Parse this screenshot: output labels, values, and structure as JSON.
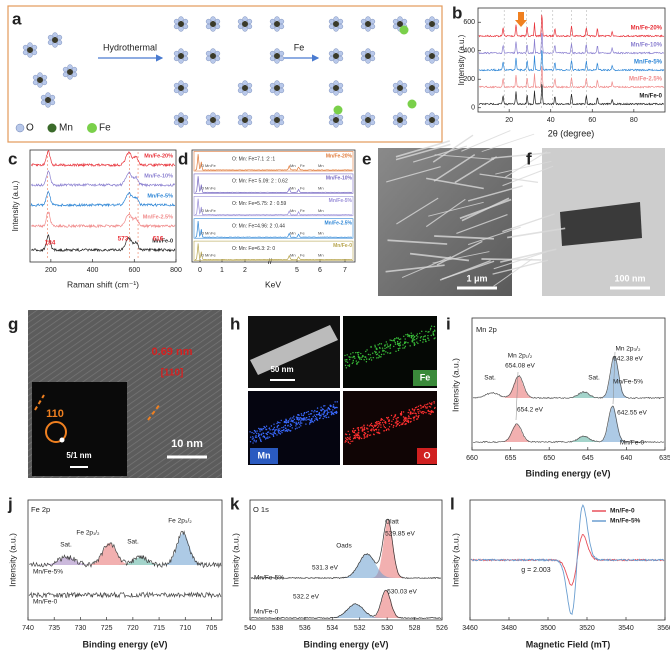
{
  "a": {
    "letter": "a",
    "steps": [
      "Hydrothermal",
      "Fe"
    ],
    "legend": [
      "O",
      "Mn",
      "Fe"
    ]
  },
  "b": {
    "letter": "b",
    "x_label": "2θ (degree)",
    "y_label": "Intensity (a.u.)",
    "xlim": [
      5,
      95
    ],
    "xticks": [
      20,
      40,
      60,
      80
    ],
    "ylim": [
      -30,
      700
    ],
    "yticks": [
      0,
      200,
      400,
      600
    ],
    "series": [
      {
        "name": "Mn/Fe-20%",
        "color": "#e8323a"
      },
      {
        "name": "Mn/Fe-10%",
        "color": "#8a7fd0"
      },
      {
        "name": "Mn/Fe-5%",
        "color": "#2e86d6"
      },
      {
        "name": "Mn/Fe-2.5%",
        "color": "#f08a8a"
      },
      {
        "name": "Mn/Fe-0",
        "color": "#222222"
      }
    ]
  },
  "c": {
    "letter": "c",
    "x_label": "Raman shift (cm⁻¹)",
    "y_label": "Intensity (a.u.)",
    "xlim": [
      100,
      800
    ],
    "xticks": [
      200,
      400,
      600,
      800
    ],
    "peaks": [
      "184",
      "573",
      "616"
    ],
    "series": [
      {
        "name": "Mn/Fe-20%",
        "color": "#e8323a"
      },
      {
        "name": "Mn/Fe-10%",
        "color": "#8a7fd0"
      },
      {
        "name": "Mn/Fe-5%",
        "color": "#2e86d6"
      },
      {
        "name": "Mn/Fe-2.5%",
        "color": "#f08a8a"
      },
      {
        "name": "Mn/Fe-0",
        "color": "#222222"
      }
    ]
  },
  "d": {
    "letter": "d",
    "x_label": "KeV",
    "xticks": [
      0,
      1,
      2,
      5,
      6,
      7
    ],
    "rows": [
      {
        "name": "Mn/Fe-20%",
        "color": "#e07a3a",
        "ratio": "O: Mn: Fe=7.1 :2 :1",
        "elements": [
          "O",
          "Mn",
          "Fe",
          "Mn",
          "Fe",
          "Mn"
        ]
      },
      {
        "name": "Mn/Fe-10%",
        "color": "#7a6cc4",
        "ratio": "O: Mn: Fe= 5.09: 2 : 0.62",
        "elements": [
          "O",
          "Mn",
          "Fe",
          "Mn",
          "Fe",
          "Mn"
        ]
      },
      {
        "name": "Mn/Fe-5%",
        "color": "#9a8fd8",
        "ratio": "O: Mn: Fe=5.75: 2 : 0.59",
        "elements": [
          "O",
          "Mn",
          "Fe",
          "Mn",
          "Fe",
          "Mn"
        ]
      },
      {
        "name": "Mn/Fe-2.5%",
        "color": "#2e86d6",
        "ratio": "O: Mn: Fe=4.96: 2 :0.44",
        "elements": [
          "O",
          "Mn",
          "Fe",
          "Mn",
          "Fe",
          "Mn"
        ]
      },
      {
        "name": "Mn/Fe-0",
        "color": "#b8a650",
        "ratio": "O: Mn: Fe=6.3: 2: 0",
        "elements": [
          "O",
          "Mn",
          "Fe",
          "Mn",
          "Fe",
          "Mn"
        ]
      }
    ]
  },
  "e": {
    "letter": "e",
    "scale": "1 μm"
  },
  "f": {
    "letter": "f",
    "scale": "100 nm"
  },
  "g": {
    "letter": "g",
    "spacing": "0.69 nm",
    "plane": "[110]",
    "spot": "110",
    "inset_scale": "5/1 nm",
    "scale": "10 nm"
  },
  "h": {
    "letter": "h",
    "scale": "50 nm",
    "maps": [
      "Fe",
      "Mn",
      "O"
    ]
  },
  "i": {
    "letter": "i",
    "title": "Mn 2p",
    "x_label": "Binding energy (eV)",
    "y_label": "Intensity (a.u.)",
    "xlim": [
      660,
      635
    ],
    "xticks": [
      660,
      655,
      650,
      645,
      640,
      635
    ],
    "annotations": [
      "Mn 2p₁/₂",
      "654.08 eV",
      "Mn 2p₃/₂",
      "642.38 eV",
      "Sat.",
      "Sat.",
      "654.2 eV",
      "642.55 eV"
    ],
    "series": [
      "Mn/Fe-5%",
      "Mn/Fe-0"
    ]
  },
  "j": {
    "letter": "j",
    "title": "Fe 2p",
    "x_label": "Binding energy (eV)",
    "y_label": "Intensity (a.u.)",
    "xlim": [
      740,
      703
    ],
    "xticks": [
      740,
      735,
      730,
      725,
      720,
      715,
      710,
      705
    ],
    "annotations": [
      "Fe 2p₁/₂",
      "Fe 2p₃/₂",
      "Sat.",
      "Sat."
    ],
    "series": [
      "Mn/Fe-5%",
      "Mn/Fe-0"
    ]
  },
  "k": {
    "letter": "k",
    "title": "O 1s",
    "x_label": "Binding energy (eV)",
    "y_label": "Intensity (a.u.)",
    "xlim": [
      540,
      526
    ],
    "xticks": [
      540,
      538,
      536,
      534,
      532,
      530,
      528,
      526
    ],
    "annotations": [
      "Olatt",
      "529.85 eV",
      "Oads",
      "531.3 eV",
      "532.2 eV",
      "530.03 eV"
    ],
    "series": [
      "Mn/Fe-5%",
      "Mn/Fe-0"
    ]
  },
  "l": {
    "letter": "l",
    "x_label": "Magnetic Field (mT)",
    "y_label": "Intensity (a.u.)",
    "xlim": [
      3460,
      3560
    ],
    "xticks": [
      3460,
      3480,
      3500,
      3520,
      3540,
      3560
    ],
    "annotation": "g = 2.003",
    "series": [
      {
        "name": "Mn/Fe-0",
        "color": "#e8505a"
      },
      {
        "name": "Mn/Fe-5%",
        "color": "#6a9ed0"
      }
    ]
  }
}
